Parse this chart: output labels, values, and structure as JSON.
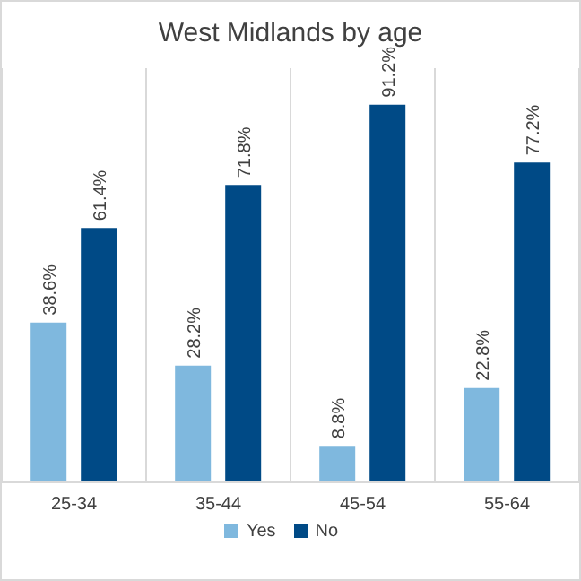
{
  "chart_data": {
    "type": "bar",
    "title": "West Midlands by age",
    "categories": [
      "25-34",
      "35-44",
      "45-54",
      "55-64"
    ],
    "series": [
      {
        "name": "Yes",
        "color": "#7fb8de",
        "values": [
          38.6,
          28.2,
          8.8,
          22.8
        ],
        "value_labels": [
          "38.6%",
          "28.2%",
          "8.8%",
          "22.8%"
        ]
      },
      {
        "name": "No",
        "color": "#004a86",
        "values": [
          61.4,
          71.8,
          91.2,
          77.2
        ],
        "value_labels": [
          "61.4%",
          "71.8%",
          "91.2%",
          "77.2%"
        ]
      }
    ],
    "grid": "x",
    "legend": "bottom"
  }
}
